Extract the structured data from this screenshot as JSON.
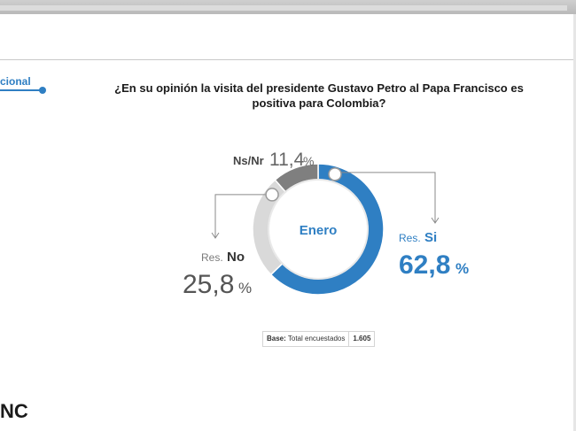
{
  "header": {
    "section_label": "cional",
    "question_line1": "¿En su opinión la visita del presidente Gustavo Petro  al Papa Francisco es",
    "question_line2": "positiva para Colombia?"
  },
  "chart_data": {
    "type": "pie",
    "variant": "donut",
    "center_label": "Enero",
    "slices": [
      {
        "key": "si",
        "prefix": "Res.",
        "label": "Si",
        "value": 62.8,
        "value_text": "62,8",
        "color": "#2f7fc3"
      },
      {
        "key": "no",
        "prefix": "Res.",
        "label": "No",
        "value": 25.8,
        "value_text": "25,8",
        "color": "#d9d9d9"
      },
      {
        "key": "nsnr",
        "prefix": "",
        "label": "Ns/Nr",
        "value": 11.4,
        "value_text": "11,4",
        "color": "#7f7f7f"
      }
    ],
    "percent_sign": "%"
  },
  "footer": {
    "base_label": "Base:",
    "base_text": "Total encuestados",
    "base_value": "1.605",
    "brand": "NC"
  },
  "colors": {
    "accent": "#2f7fc3",
    "ring_inner": "#e9e9e9",
    "text_dark": "#1a1a1a"
  }
}
